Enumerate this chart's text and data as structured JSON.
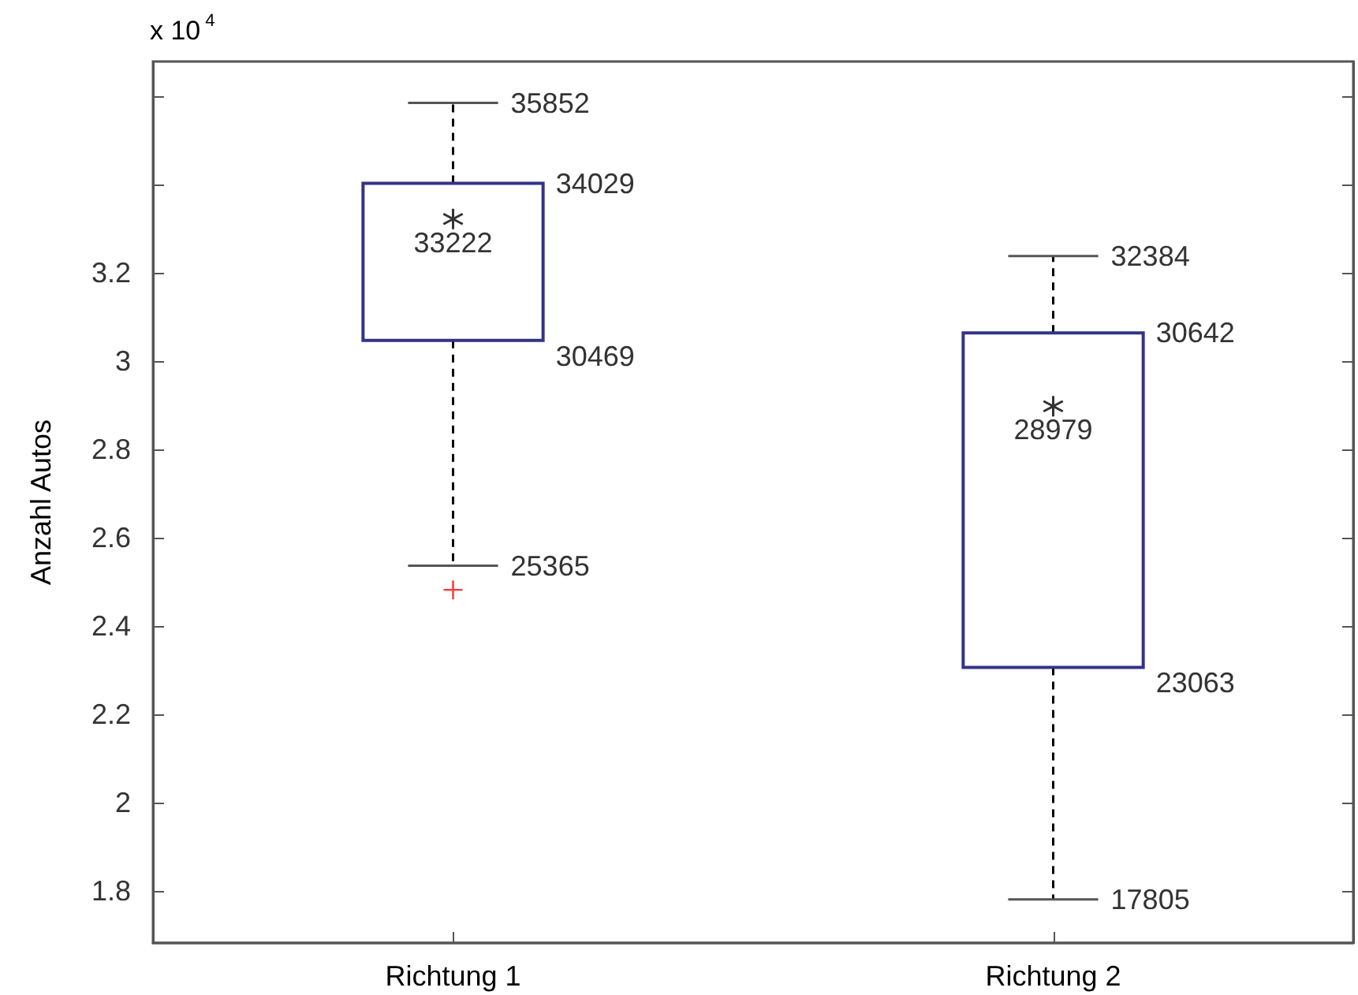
{
  "chart_data": {
    "type": "box",
    "ylabel": "Anzahl Autos",
    "categories": [
      "Richtung 1",
      "Richtung 2"
    ],
    "series": [
      {
        "color": "#333388",
        "marker": "star",
        "boxes": [
          {
            "low": 2.5365,
            "q1": 3.0469,
            "median": 3.3222,
            "q3": 3.4029,
            "high": 3.5852,
            "outliers": [
              2.482
            ]
          },
          {
            "low": 1.7805,
            "q1": 2.3063,
            "median": 2.8979,
            "q3": 3.0642,
            "high": 3.2384
          }
        ]
      }
    ],
    "ylim": [
      1.682,
      3.679
    ],
    "yticks": [
      1.8,
      2,
      2.2,
      2.4,
      2.6,
      2.8,
      3,
      3.2,
      {
        "value": 3.4,
        "label": null
      },
      {
        "value": 3.6,
        "label": null
      }
    ],
    "annotations": [
      "x 10$^{4}$",
      "35852",
      "34029",
      "33222",
      "30469",
      "25365",
      "32384",
      "30642",
      "28979",
      "23063",
      "17805"
    ],
    "grid": false
  }
}
